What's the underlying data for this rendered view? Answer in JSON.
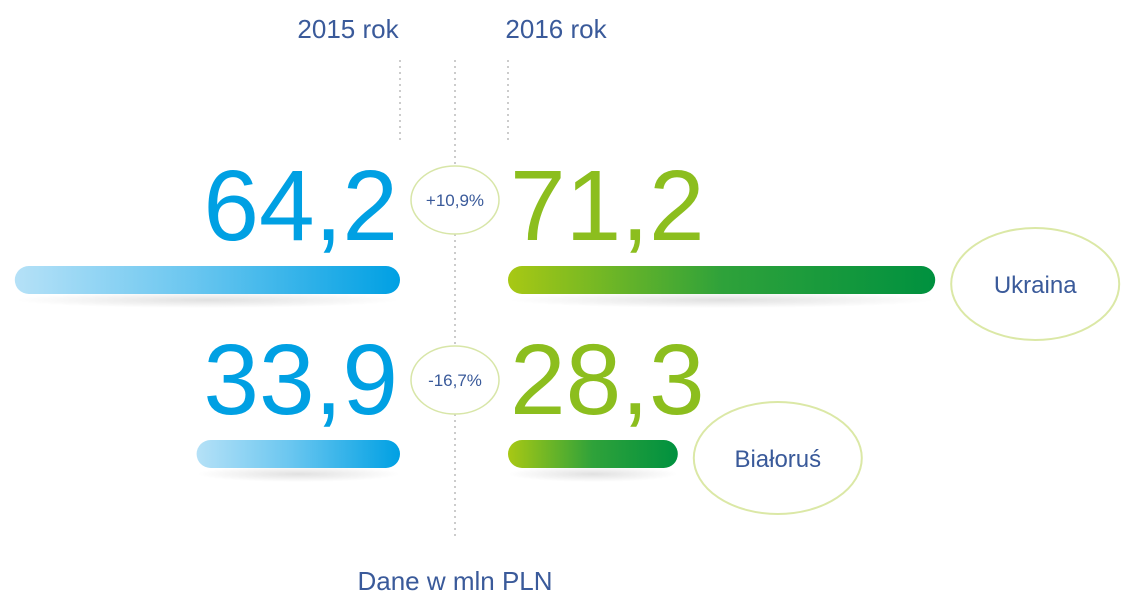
{
  "chart_data": {
    "type": "butterfly",
    "note": "Dane w mln PLN",
    "categories": [
      "Ukraina",
      "Białoruś"
    ],
    "series": [
      {
        "name": "2015 rok",
        "color": "#00a0e3",
        "values": [
          64.2,
          33.9
        ],
        "value_labels": [
          "64,2",
          "33,9"
        ]
      },
      {
        "name": "2016 rok",
        "color": "#8cbe1e",
        "values": [
          71.2,
          28.3
        ],
        "value_labels": [
          "71,2",
          "28,3"
        ]
      }
    ],
    "change": {
      "values": [
        10.9,
        -16.7
      ],
      "value_labels": [
        "+10,9%",
        "-16,7%"
      ]
    }
  }
}
